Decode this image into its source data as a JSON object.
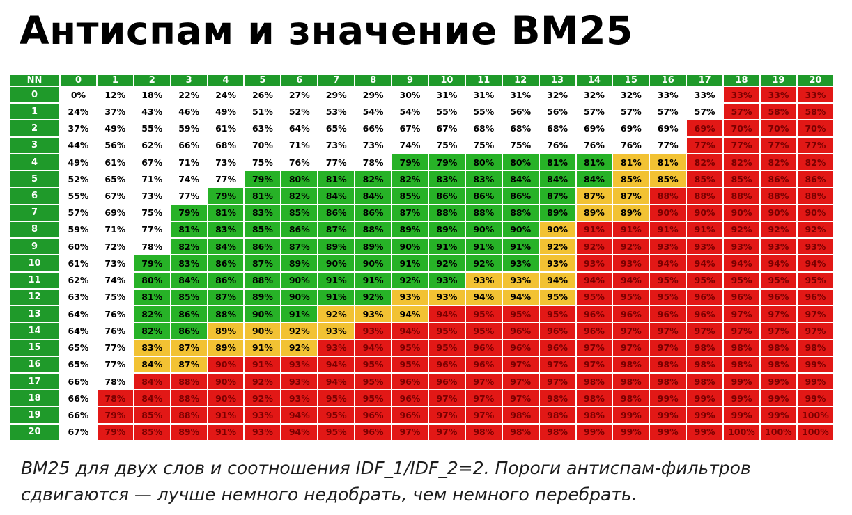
{
  "title": "Антиспам и значение BM25",
  "caption": {
    "line1": "BM25 для двух слов и соотношения IDF_1/IDF_2=2. Пороги антиспам-фильтров",
    "line2": "сдвигаются — лучше немного недобрать, чем немного перебрать."
  },
  "colors": {
    "header": "#1f9a2a",
    "white": "#ffffff",
    "green": "#27b227",
    "yellow": "#f2c233",
    "red": "#e21816"
  },
  "chart_data": {
    "type": "heatmap",
    "corner_label": "NN",
    "columns": [
      "0",
      "1",
      "2",
      "3",
      "4",
      "5",
      "6",
      "7",
      "8",
      "9",
      "10",
      "11",
      "12",
      "13",
      "14",
      "15",
      "16",
      "17",
      "18",
      "19",
      "20"
    ],
    "rows": [
      "0",
      "1",
      "2",
      "3",
      "4",
      "5",
      "6",
      "7",
      "8",
      "9",
      "10",
      "11",
      "12",
      "13",
      "14",
      "15",
      "16",
      "17",
      "18",
      "19",
      "20"
    ],
    "values": [
      [
        "0%",
        "12%",
        "18%",
        "22%",
        "24%",
        "26%",
        "27%",
        "29%",
        "29%",
        "30%",
        "31%",
        "31%",
        "31%",
        "32%",
        "32%",
        "32%",
        "33%",
        "33%",
        "33%",
        "33%",
        "33%"
      ],
      [
        "24%",
        "37%",
        "43%",
        "46%",
        "49%",
        "51%",
        "52%",
        "53%",
        "54%",
        "54%",
        "55%",
        "55%",
        "56%",
        "56%",
        "57%",
        "57%",
        "57%",
        "57%",
        "57%",
        "58%",
        "58%"
      ],
      [
        "37%",
        "49%",
        "55%",
        "59%",
        "61%",
        "63%",
        "64%",
        "65%",
        "66%",
        "67%",
        "67%",
        "68%",
        "68%",
        "68%",
        "69%",
        "69%",
        "69%",
        "69%",
        "70%",
        "70%",
        "70%"
      ],
      [
        "44%",
        "56%",
        "62%",
        "66%",
        "68%",
        "70%",
        "71%",
        "73%",
        "73%",
        "74%",
        "75%",
        "75%",
        "75%",
        "76%",
        "76%",
        "76%",
        "77%",
        "77%",
        "77%",
        "77%",
        "77%"
      ],
      [
        "49%",
        "61%",
        "67%",
        "71%",
        "73%",
        "75%",
        "76%",
        "77%",
        "78%",
        "79%",
        "79%",
        "80%",
        "80%",
        "81%",
        "81%",
        "81%",
        "81%",
        "82%",
        "82%",
        "82%",
        "82%"
      ],
      [
        "52%",
        "65%",
        "71%",
        "74%",
        "77%",
        "79%",
        "80%",
        "81%",
        "82%",
        "82%",
        "83%",
        "83%",
        "84%",
        "84%",
        "84%",
        "85%",
        "85%",
        "85%",
        "85%",
        "86%",
        "86%"
      ],
      [
        "55%",
        "67%",
        "73%",
        "77%",
        "79%",
        "81%",
        "82%",
        "84%",
        "84%",
        "85%",
        "86%",
        "86%",
        "86%",
        "87%",
        "87%",
        "87%",
        "88%",
        "88%",
        "88%",
        "88%",
        "88%"
      ],
      [
        "57%",
        "69%",
        "75%",
        "79%",
        "81%",
        "83%",
        "85%",
        "86%",
        "86%",
        "87%",
        "88%",
        "88%",
        "88%",
        "89%",
        "89%",
        "89%",
        "90%",
        "90%",
        "90%",
        "90%",
        "90%"
      ],
      [
        "59%",
        "71%",
        "77%",
        "81%",
        "83%",
        "85%",
        "86%",
        "87%",
        "88%",
        "89%",
        "89%",
        "90%",
        "90%",
        "90%",
        "91%",
        "91%",
        "91%",
        "91%",
        "92%",
        "92%",
        "92%"
      ],
      [
        "60%",
        "72%",
        "78%",
        "82%",
        "84%",
        "86%",
        "87%",
        "89%",
        "89%",
        "90%",
        "91%",
        "91%",
        "91%",
        "92%",
        "92%",
        "92%",
        "93%",
        "93%",
        "93%",
        "93%",
        "93%"
      ],
      [
        "61%",
        "73%",
        "79%",
        "83%",
        "86%",
        "87%",
        "89%",
        "90%",
        "90%",
        "91%",
        "92%",
        "92%",
        "93%",
        "93%",
        "93%",
        "93%",
        "94%",
        "94%",
        "94%",
        "94%",
        "94%"
      ],
      [
        "62%",
        "74%",
        "80%",
        "84%",
        "86%",
        "88%",
        "90%",
        "91%",
        "91%",
        "92%",
        "93%",
        "93%",
        "93%",
        "94%",
        "94%",
        "94%",
        "95%",
        "95%",
        "95%",
        "95%",
        "95%"
      ],
      [
        "63%",
        "75%",
        "81%",
        "85%",
        "87%",
        "89%",
        "90%",
        "91%",
        "92%",
        "93%",
        "93%",
        "94%",
        "94%",
        "95%",
        "95%",
        "95%",
        "95%",
        "96%",
        "96%",
        "96%",
        "96%"
      ],
      [
        "64%",
        "76%",
        "82%",
        "86%",
        "88%",
        "90%",
        "91%",
        "92%",
        "93%",
        "94%",
        "94%",
        "95%",
        "95%",
        "95%",
        "96%",
        "96%",
        "96%",
        "96%",
        "97%",
        "97%",
        "97%"
      ],
      [
        "64%",
        "76%",
        "82%",
        "86%",
        "89%",
        "90%",
        "92%",
        "93%",
        "93%",
        "94%",
        "95%",
        "95%",
        "96%",
        "96%",
        "96%",
        "97%",
        "97%",
        "97%",
        "97%",
        "97%",
        "97%"
      ],
      [
        "65%",
        "77%",
        "83%",
        "87%",
        "89%",
        "91%",
        "92%",
        "93%",
        "94%",
        "95%",
        "95%",
        "96%",
        "96%",
        "96%",
        "97%",
        "97%",
        "97%",
        "98%",
        "98%",
        "98%",
        "98%"
      ],
      [
        "65%",
        "77%",
        "84%",
        "87%",
        "90%",
        "91%",
        "93%",
        "94%",
        "95%",
        "95%",
        "96%",
        "96%",
        "97%",
        "97%",
        "97%",
        "98%",
        "98%",
        "98%",
        "98%",
        "98%",
        "99%"
      ],
      [
        "66%",
        "78%",
        "84%",
        "88%",
        "90%",
        "92%",
        "93%",
        "94%",
        "95%",
        "96%",
        "96%",
        "97%",
        "97%",
        "97%",
        "98%",
        "98%",
        "98%",
        "98%",
        "99%",
        "99%",
        "99%"
      ],
      [
        "66%",
        "78%",
        "84%",
        "88%",
        "90%",
        "92%",
        "93%",
        "95%",
        "95%",
        "96%",
        "97%",
        "97%",
        "97%",
        "98%",
        "98%",
        "98%",
        "99%",
        "99%",
        "99%",
        "99%",
        "99%"
      ],
      [
        "66%",
        "79%",
        "85%",
        "88%",
        "91%",
        "93%",
        "94%",
        "95%",
        "96%",
        "96%",
        "97%",
        "97%",
        "98%",
        "98%",
        "98%",
        "99%",
        "99%",
        "99%",
        "99%",
        "99%",
        "100%"
      ],
      [
        "67%",
        "79%",
        "85%",
        "89%",
        "91%",
        "93%",
        "94%",
        "95%",
        "96%",
        "97%",
        "97%",
        "98%",
        "98%",
        "98%",
        "99%",
        "99%",
        "99%",
        "99%",
        "100%",
        "100%",
        "100%"
      ]
    ],
    "cell_colors": [
      "wwwwwwwwwwwwwwwwwwrrr",
      "wwwwwwwwwwwwwwwwwwrrr",
      "wwwwwwwwwwwwwwwwwrrrr",
      "wwwwwwwwwwwwwwwwwrrrr",
      "wwwwwwwwwggggggyyrrrr",
      "wwwwwggggggggggyyrrrr",
      "wwwwggggggggggyyrrrrr",
      "wwwgggggggggggyyrrrrr",
      "wwwggggggggggyrrrrrrr",
      "wwwggggggggggyrrrrrrr",
      "wwgggggggggggyrrrrrrr",
      "wwgggggggggyyyrrrrrrr",
      "wwgggggggyyyyyrrrrrrr",
      "wwgggggyyyrrrrrrrrrrr",
      "wwggyyyyrrrrrrrrrrrrr",
      "wwyyyyyrrrrrrrrrrrrrr",
      "wwyyrrrrrrrrrrrrrrrrr",
      "wwrrrrrrrrrrrrrrrrrrr",
      "wrrrrrrrrrrrrrrrrrrrr",
      "wrrrrrrrrrrrrrrrrrrrr",
      "wrrrrrrrrrrrrrrrrrrrr"
    ]
  }
}
